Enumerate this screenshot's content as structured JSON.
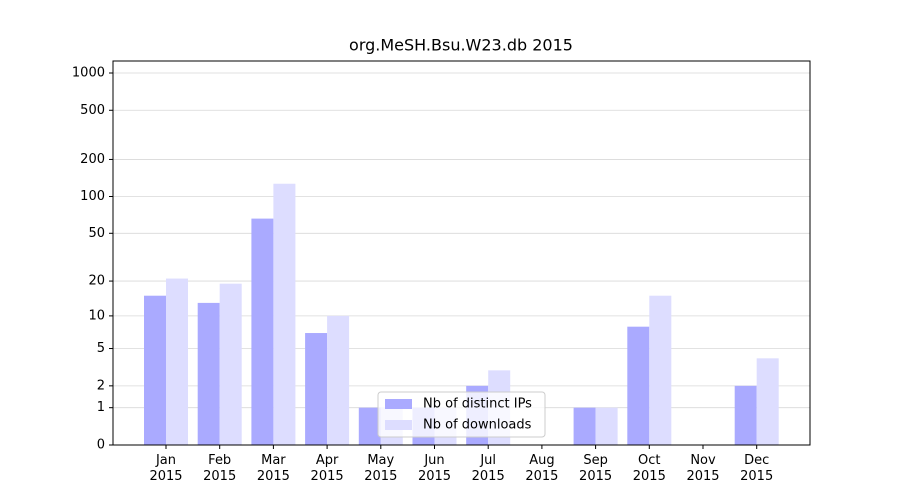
{
  "chart_data": {
    "type": "bar",
    "title": "org.MeSH.Bsu.W23.db 2015",
    "categories": [
      "Jan 2015",
      "Feb 2015",
      "Mar 2015",
      "Apr 2015",
      "May 2015",
      "Jun 2015",
      "Jul 2015",
      "Aug 2015",
      "Sep 2015",
      "Oct 2015",
      "Nov 2015",
      "Dec 2015"
    ],
    "series": [
      {
        "name": "Nb of distinct IPs",
        "color": "#aaaaff",
        "values": [
          15,
          13,
          66,
          7,
          1,
          1,
          2,
          0,
          1,
          8,
          0,
          2
        ]
      },
      {
        "name": "Nb of downloads",
        "color": "#ddddff",
        "values": [
          21,
          19,
          127,
          10,
          1,
          1,
          3,
          0,
          1,
          15,
          0,
          4
        ]
      }
    ],
    "yscale": "log1p",
    "ylim": [
      0,
      1250
    ],
    "yticks": [
      0,
      1,
      2,
      5,
      10,
      20,
      50,
      100,
      200,
      500,
      1000
    ],
    "grid": true,
    "legend": "lower center"
  }
}
